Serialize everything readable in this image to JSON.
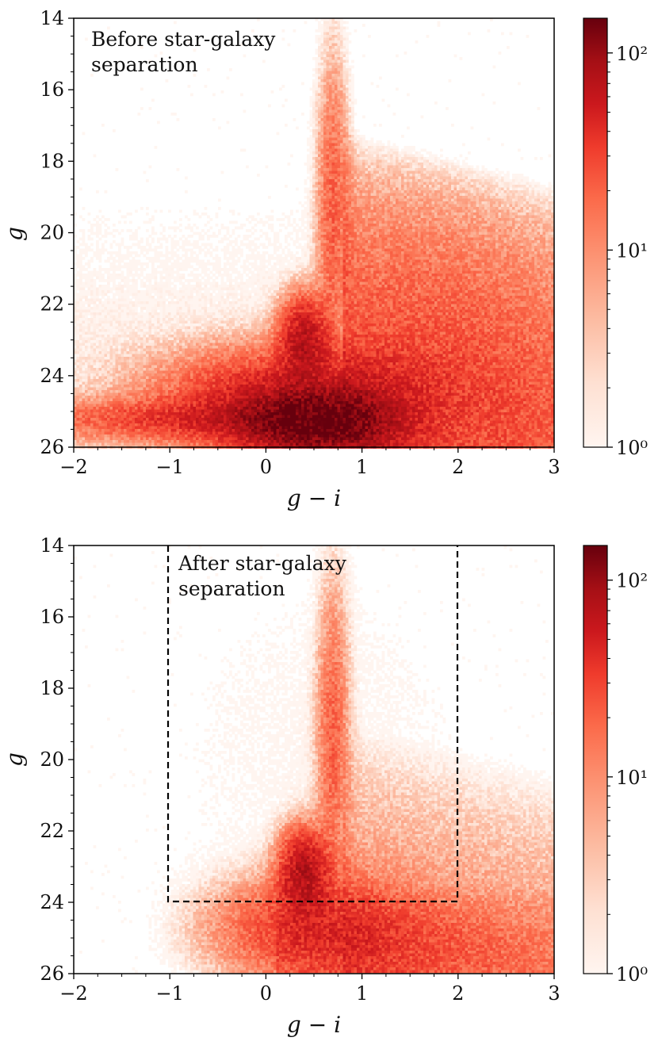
{
  "chart_data": [
    {
      "type": "heatmap",
      "annotation": [
        "Before star-galaxy",
        "separation"
      ],
      "xlabel": "g − i",
      "ylabel": "g",
      "xlim": [
        -2,
        3
      ],
      "ylim": [
        26,
        14
      ],
      "y_inverted": true,
      "x_ticks": [
        -2,
        -1,
        0,
        1,
        2,
        3
      ],
      "x_tick_labels": [
        "−2",
        "−1",
        "0",
        "1",
        "2",
        "3"
      ],
      "y_ticks": [
        14,
        16,
        18,
        20,
        22,
        24,
        26
      ],
      "y_tick_labels": [
        "14",
        "16",
        "18",
        "20",
        "22",
        "24",
        "26"
      ],
      "colorbar": {
        "scale": "log",
        "range": [
          1,
          150
        ],
        "ticks": [
          1,
          10,
          100
        ],
        "tick_labels": [
          "10⁰",
          "10¹",
          "10²"
        ],
        "colormap": "Reds"
      },
      "features": [
        {
          "description": "main blob",
          "center": [
            0.6,
            25.3
          ],
          "peak_density": 150
        },
        {
          "description": "vertical plume",
          "x": 0.7,
          "y_range": [
            15.5,
            22
          ]
        },
        {
          "description": "wing to blue colors",
          "x_range": [
            -2,
            0
          ],
          "y": 25.2
        },
        {
          "description": "red fan",
          "x_range": [
            1,
            3
          ],
          "y_range": [
            17,
            26
          ]
        }
      ],
      "selection_box": null
    },
    {
      "type": "heatmap",
      "annotation": [
        "After star-galaxy",
        "separation"
      ],
      "xlabel": "g − i",
      "ylabel": "g",
      "xlim": [
        -2,
        3
      ],
      "ylim": [
        26,
        14
      ],
      "y_inverted": true,
      "x_ticks": [
        -2,
        -1,
        0,
        1,
        2,
        3
      ],
      "x_tick_labels": [
        "−2",
        "−1",
        "0",
        "1",
        "2",
        "3"
      ],
      "y_ticks": [
        14,
        16,
        18,
        20,
        22,
        24,
        26
      ],
      "y_tick_labels": [
        "14",
        "16",
        "18",
        "20",
        "22",
        "24",
        "26"
      ],
      "colorbar": {
        "scale": "log",
        "range": [
          1,
          150
        ],
        "ticks": [
          1,
          10,
          100
        ],
        "tick_labels": [
          "10⁰",
          "10¹",
          "10²"
        ],
        "colormap": "Reds"
      },
      "features": [
        {
          "description": "turnoff clump",
          "center": [
            0.4,
            23.2
          ],
          "peak_density": 60
        },
        {
          "description": "vertical plume",
          "x": 0.7,
          "y_range": [
            15.5,
            22
          ]
        },
        {
          "description": "lower band",
          "x_range": [
            0,
            3
          ],
          "y_range": [
            24,
            26
          ]
        }
      ],
      "selection_box": {
        "x": [
          -1,
          2
        ],
        "y": [
          14,
          24
        ],
        "style": "dashed"
      }
    }
  ],
  "colors": {
    "colormap": [
      "#fff5f0",
      "#fee0d2",
      "#fcbba1",
      "#fc9272",
      "#fb6a4a",
      "#ef3b2c",
      "#cb181d",
      "#a50f15",
      "#67000d"
    ],
    "frame": "#000000",
    "selection_box": "#000000"
  }
}
